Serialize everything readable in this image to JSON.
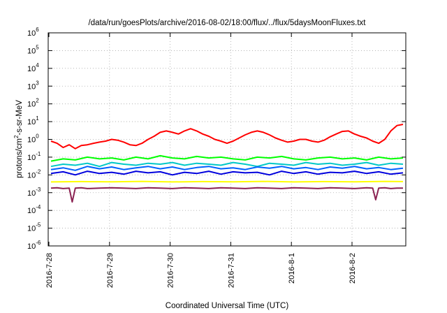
{
  "chart_data": {
    "type": "line",
    "title": "/data/run/goesPlots/archive/2016-08-02/18:00/flux/../flux/5daysMoonFluxes.txt",
    "xlabel": "Coordinated Universal Time (UTC)",
    "ylabel_parts": [
      "protons/cm",
      "2",
      "-s-sr-MeV"
    ],
    "y_scale": "log",
    "ylim_exp": [
      -6,
      6
    ],
    "y_ticks": [
      {
        "base": "10",
        "exp": "-6"
      },
      {
        "base": "10",
        "exp": "-5"
      },
      {
        "base": "10",
        "exp": "-4"
      },
      {
        "base": "10",
        "exp": "-3"
      },
      {
        "base": "10",
        "exp": "-2"
      },
      {
        "base": "10",
        "exp": "-1"
      },
      {
        "base": "10",
        "exp": "0"
      },
      {
        "base": "10",
        "exp": "1"
      },
      {
        "base": "10",
        "exp": "2"
      },
      {
        "base": "10",
        "exp": "3"
      },
      {
        "base": "10",
        "exp": "4"
      },
      {
        "base": "10",
        "exp": "5"
      },
      {
        "base": "10",
        "exp": "6"
      }
    ],
    "x_ticks": [
      "2016-7-28",
      "2016-7-29",
      "2016-7-30",
      "2016-7-31",
      "2016-8-1",
      "2016-8-2"
    ],
    "xlim_days": [
      0,
      5.8
    ],
    "grid": true,
    "series": [
      {
        "color": "#ff0000",
        "x": [
          0,
          0.1,
          0.2,
          0.3,
          0.4,
          0.5,
          0.6,
          0.7,
          0.8,
          0.9,
          1.0,
          1.1,
          1.2,
          1.3,
          1.4,
          1.5,
          1.6,
          1.7,
          1.8,
          1.9,
          2.0,
          2.1,
          2.2,
          2.3,
          2.4,
          2.5,
          2.6,
          2.7,
          2.8,
          2.9,
          3.0,
          3.1,
          3.2,
          3.3,
          3.4,
          3.5,
          3.6,
          3.7,
          3.8,
          3.9,
          4.0,
          4.1,
          4.2,
          4.3,
          4.4,
          4.5,
          4.6,
          4.7,
          4.8,
          4.9,
          5.0,
          5.1,
          5.2,
          5.3,
          5.4,
          5.5,
          5.6,
          5.7,
          5.8
        ],
        "y": [
          0.8,
          0.6,
          0.35,
          0.5,
          0.3,
          0.45,
          0.5,
          0.6,
          0.7,
          0.8,
          1.0,
          0.9,
          0.7,
          0.5,
          0.45,
          0.6,
          1.0,
          1.5,
          2.5,
          3.0,
          2.5,
          2.0,
          3.0,
          4.0,
          3.0,
          2.0,
          1.5,
          1.0,
          0.8,
          0.6,
          0.8,
          1.2,
          1.8,
          2.5,
          3.0,
          2.5,
          1.8,
          1.2,
          0.9,
          0.7,
          0.8,
          1.0,
          1.0,
          0.8,
          0.7,
          0.9,
          1.4,
          2.0,
          2.8,
          3.0,
          2.0,
          1.5,
          1.2,
          0.8,
          0.6,
          1.0,
          3.0,
          6.0,
          7.0
        ]
      },
      {
        "color": "#00ff00",
        "x": [
          0,
          0.2,
          0.4,
          0.6,
          0.8,
          1.0,
          1.2,
          1.4,
          1.6,
          1.8,
          2.0,
          2.2,
          2.4,
          2.6,
          2.8,
          3.0,
          3.2,
          3.4,
          3.6,
          3.8,
          4.0,
          4.2,
          4.4,
          4.6,
          4.8,
          5.0,
          5.2,
          5.4,
          5.6,
          5.8
        ],
        "y": [
          0.06,
          0.08,
          0.07,
          0.1,
          0.08,
          0.09,
          0.07,
          0.1,
          0.08,
          0.12,
          0.09,
          0.08,
          0.11,
          0.09,
          0.1,
          0.08,
          0.07,
          0.1,
          0.09,
          0.11,
          0.08,
          0.07,
          0.09,
          0.1,
          0.08,
          0.09,
          0.07,
          0.1,
          0.08,
          0.09
        ]
      },
      {
        "color": "#00c8c8",
        "x": [
          0,
          0.2,
          0.4,
          0.6,
          0.8,
          1.0,
          1.2,
          1.4,
          1.6,
          1.8,
          2.0,
          2.2,
          2.4,
          2.6,
          2.8,
          3.0,
          3.2,
          3.4,
          3.6,
          3.8,
          4.0,
          4.2,
          4.4,
          4.6,
          4.8,
          5.0,
          5.2,
          5.4,
          5.6,
          5.8
        ],
        "y": [
          0.03,
          0.04,
          0.035,
          0.045,
          0.03,
          0.05,
          0.04,
          0.035,
          0.045,
          0.04,
          0.05,
          0.035,
          0.045,
          0.04,
          0.035,
          0.05,
          0.04,
          0.03,
          0.045,
          0.04,
          0.035,
          0.05,
          0.04,
          0.045,
          0.035,
          0.04,
          0.05,
          0.035,
          0.045,
          0.04
        ]
      },
      {
        "color": "#0060ff",
        "x": [
          0,
          0.2,
          0.4,
          0.6,
          0.8,
          1.0,
          1.2,
          1.4,
          1.6,
          1.8,
          2.0,
          2.2,
          2.4,
          2.6,
          2.8,
          3.0,
          3.2,
          3.4,
          3.6,
          3.8,
          4.0,
          4.2,
          4.4,
          4.6,
          4.8,
          5.0,
          5.2,
          5.4,
          5.6,
          5.8
        ],
        "y": [
          0.02,
          0.025,
          0.018,
          0.03,
          0.022,
          0.028,
          0.02,
          0.025,
          0.03,
          0.022,
          0.028,
          0.02,
          0.026,
          0.03,
          0.022,
          0.025,
          0.02,
          0.028,
          0.024,
          0.03,
          0.022,
          0.026,
          0.02,
          0.028,
          0.024,
          0.03,
          0.022,
          0.026,
          0.02,
          0.024
        ]
      },
      {
        "color": "#0000dd",
        "x": [
          0,
          0.2,
          0.4,
          0.6,
          0.8,
          1.0,
          1.2,
          1.4,
          1.6,
          1.8,
          2.0,
          2.2,
          2.4,
          2.6,
          2.8,
          3.0,
          3.2,
          3.4,
          3.6,
          3.8,
          4.0,
          4.2,
          4.4,
          4.6,
          4.8,
          5.0,
          5.2,
          5.4,
          5.6,
          5.8
        ],
        "y": [
          0.012,
          0.015,
          0.01,
          0.016,
          0.012,
          0.014,
          0.011,
          0.016,
          0.013,
          0.015,
          0.01,
          0.014,
          0.012,
          0.016,
          0.011,
          0.015,
          0.013,
          0.014,
          0.01,
          0.016,
          0.012,
          0.015,
          0.011,
          0.014,
          0.013,
          0.016,
          0.012,
          0.015,
          0.011,
          0.013
        ]
      },
      {
        "color": "#ffff00",
        "x": [
          0,
          0.5,
          1.0,
          1.5,
          2.0,
          2.5,
          3.0,
          3.5,
          4.0,
          4.5,
          5.0,
          5.5,
          5.8
        ],
        "y": [
          0.004,
          0.0042,
          0.0041,
          0.0043,
          0.004,
          0.0042,
          0.0041,
          0.0043,
          0.004,
          0.0042,
          0.0041,
          0.0043,
          0.0042
        ]
      },
      {
        "color": "#8b2252",
        "x": [
          0,
          0.1,
          0.2,
          0.3,
          0.35,
          0.4,
          0.5,
          0.6,
          0.8,
          1.0,
          1.2,
          1.4,
          1.6,
          1.8,
          2.0,
          2.2,
          2.4,
          2.6,
          2.8,
          3.0,
          3.2,
          3.4,
          3.6,
          3.8,
          4.0,
          4.2,
          4.4,
          4.6,
          4.8,
          5.0,
          5.2,
          5.3,
          5.35,
          5.4,
          5.5,
          5.6,
          5.7,
          5.8
        ],
        "y": [
          0.0018,
          0.0019,
          0.0017,
          0.0018,
          0.0003,
          0.0018,
          0.0019,
          0.0017,
          0.0018,
          0.0019,
          0.0018,
          0.0017,
          0.0019,
          0.0018,
          0.0017,
          0.0019,
          0.0018,
          0.0017,
          0.0019,
          0.0018,
          0.0017,
          0.0019,
          0.0018,
          0.0017,
          0.0019,
          0.0018,
          0.0017,
          0.0019,
          0.0018,
          0.0017,
          0.0019,
          0.0018,
          0.0004,
          0.0018,
          0.0019,
          0.0017,
          0.0018,
          0.0018
        ]
      }
    ]
  }
}
